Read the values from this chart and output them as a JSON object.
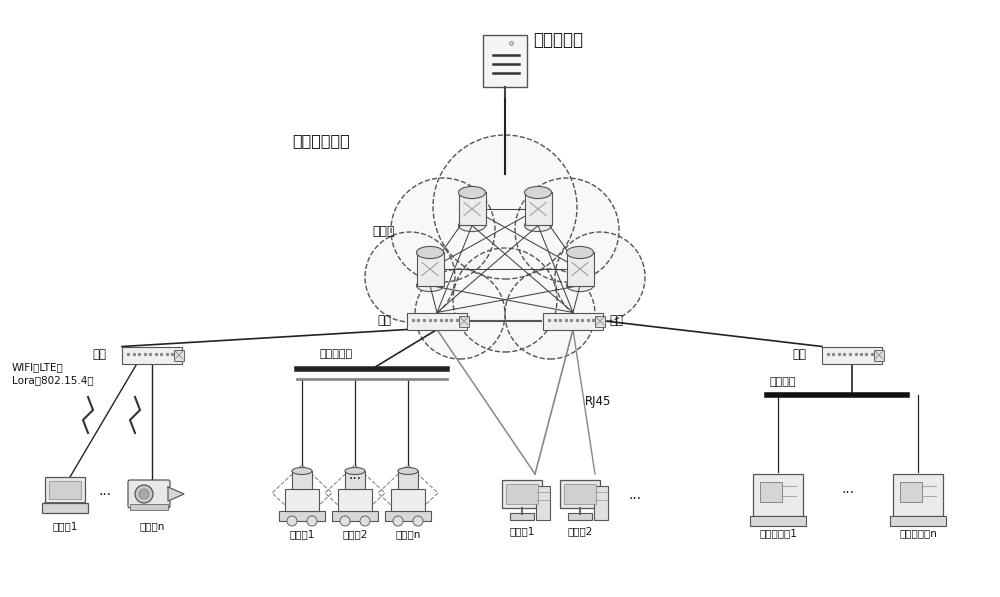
{
  "bg_color": "#ffffff",
  "text_color": "#111111",
  "center_controller_label": "中心控制器",
  "cloud_label": "时间敏感网络",
  "switch_label": "交换机",
  "gateway_label": "网关",
  "dual_eth_label": "双线以太网",
  "rj45_label": "RJ45",
  "fieldbus_label": "现场总线",
  "wifi_label": "WIFI、LTE、\nLora、802.15.4等",
  "subsys_labels": [
    "子系统1",
    "子系统n",
    "子系统1",
    "子系统2",
    "子系统n",
    "子系统1",
    "子系统2",
    "有线子系统1",
    "有线子系统n"
  ],
  "line_color": "#222222",
  "gray_line_color": "#888888"
}
